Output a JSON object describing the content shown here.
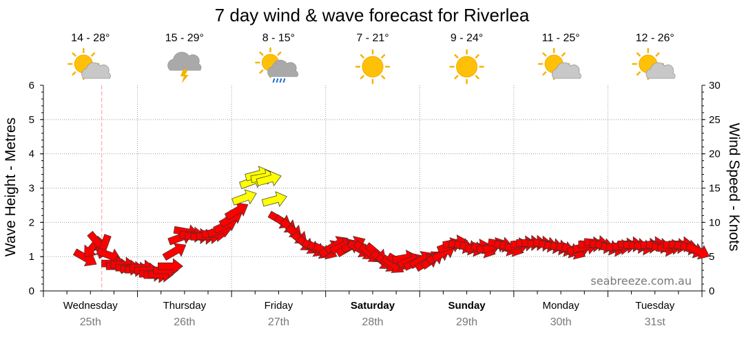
{
  "chart_data": {
    "type": "line",
    "title": "7 day wind & wave forecast for Riverlea",
    "ylabel_left": "Wave Height - Metres",
    "ylabel_right": "Wind Speed - Knots",
    "ylim_left": [
      0,
      6
    ],
    "ylim_right": [
      0,
      30
    ],
    "yticks_left": [
      "0",
      "1",
      "2",
      "3",
      "4",
      "5",
      "6"
    ],
    "yticks_right": [
      "0",
      "5",
      "10",
      "15",
      "20",
      "25",
      "30"
    ],
    "grid": true,
    "watermark": "seabreeze.com.au",
    "days": [
      {
        "name": "Wednesday",
        "date": "25th",
        "bold": false,
        "temp": "14 - 28°",
        "icon": "partly-cloudy-icon"
      },
      {
        "name": "Thursday",
        "date": "26th",
        "bold": false,
        "temp": "15 - 29°",
        "icon": "thunderstorm-icon"
      },
      {
        "name": "Friday",
        "date": "27th",
        "bold": false,
        "temp": "8 - 15°",
        "icon": "showers-icon"
      },
      {
        "name": "Saturday",
        "date": "28th",
        "bold": true,
        "temp": "7 - 21°",
        "icon": "sunny-icon"
      },
      {
        "name": "Sunday",
        "date": "29th",
        "bold": true,
        "temp": "9 - 24°",
        "icon": "sunny-icon"
      },
      {
        "name": "Monday",
        "date": "30th",
        "bold": false,
        "temp": "11 - 25°",
        "icon": "partly-cloudy-icon"
      },
      {
        "name": "Tuesday",
        "date": "31st",
        "bold": false,
        "temp": "12 - 26°",
        "icon": "partly-cloudy-icon"
      }
    ],
    "colors": {
      "wind_strong": "#ffff00",
      "wind_normal": "#ff0000",
      "arrow_stroke": "#333333",
      "current_time_line": "#ff9999"
    },
    "current_time_day": 0.62,
    "wind_series": {
      "name": "Wind Speed",
      "unit": "knots",
      "points": [
        {
          "t": 0.45,
          "v": 4.8,
          "dir": 30
        },
        {
          "t": 0.52,
          "v": 6.3,
          "dir": 130
        },
        {
          "t": 0.58,
          "v": 7.0,
          "dir": 50
        },
        {
          "t": 0.64,
          "v": 6.4,
          "dir": 110
        },
        {
          "t": 0.7,
          "v": 5.2,
          "dir": 20
        },
        {
          "t": 0.75,
          "v": 4.0,
          "dir": 0
        },
        {
          "t": 0.8,
          "v": 3.6,
          "dir": 0
        },
        {
          "t": 0.85,
          "v": 3.8,
          "dir": 0
        },
        {
          "t": 0.9,
          "v": 3.4,
          "dir": 0
        },
        {
          "t": 0.95,
          "v": 3.2,
          "dir": 0
        },
        {
          "t": 1.0,
          "v": 3.1,
          "dir": 0
        },
        {
          "t": 1.05,
          "v": 3.4,
          "dir": 0
        },
        {
          "t": 1.1,
          "v": 3.0,
          "dir": 0
        },
        {
          "t": 1.15,
          "v": 2.5,
          "dir": 0
        },
        {
          "t": 1.2,
          "v": 2.3,
          "dir": 0
        },
        {
          "t": 1.25,
          "v": 2.4,
          "dir": 0
        },
        {
          "t": 1.3,
          "v": 3.0,
          "dir": 0
        },
        {
          "t": 1.35,
          "v": 3.6,
          "dir": 0
        },
        {
          "t": 1.4,
          "v": 5.8,
          "dir": -30
        },
        {
          "t": 1.46,
          "v": 7.8,
          "dir": -20
        },
        {
          "t": 1.52,
          "v": 8.6,
          "dir": 10
        },
        {
          "t": 1.58,
          "v": 8.2,
          "dir": 0
        },
        {
          "t": 1.64,
          "v": 8.0,
          "dir": 0
        },
        {
          "t": 1.7,
          "v": 7.9,
          "dir": 0
        },
        {
          "t": 1.76,
          "v": 8.0,
          "dir": 0
        },
        {
          "t": 1.82,
          "v": 8.3,
          "dir": 0
        },
        {
          "t": 1.88,
          "v": 8.8,
          "dir": -15
        },
        {
          "t": 1.94,
          "v": 9.6,
          "dir": -25
        },
        {
          "t": 2.0,
          "v": 10.6,
          "dir": -30
        },
        {
          "t": 2.06,
          "v": 11.7,
          "dir": -30
        },
        {
          "t": 2.14,
          "v": 13.6,
          "dir": -20
        },
        {
          "t": 2.22,
          "v": 16.0,
          "dir": -20
        },
        {
          "t": 2.28,
          "v": 17.0,
          "dir": -15
        },
        {
          "t": 2.34,
          "v": 16.6,
          "dir": -10
        },
        {
          "t": 2.4,
          "v": 16.3,
          "dir": -15
        },
        {
          "t": 2.46,
          "v": 13.3,
          "dir": -15
        },
        {
          "t": 2.52,
          "v": 10.3,
          "dir": 30
        },
        {
          "t": 2.58,
          "v": 9.7,
          "dir": 35
        },
        {
          "t": 2.64,
          "v": 9.0,
          "dir": 40
        },
        {
          "t": 2.7,
          "v": 8.1,
          "dir": 40
        },
        {
          "t": 2.76,
          "v": 7.1,
          "dir": 40
        },
        {
          "t": 2.82,
          "v": 6.6,
          "dir": 35
        },
        {
          "t": 2.88,
          "v": 6.2,
          "dir": 30
        },
        {
          "t": 2.94,
          "v": 5.9,
          "dir": 30
        },
        {
          "t": 3.0,
          "v": 5.8,
          "dir": 25
        },
        {
          "t": 3.06,
          "v": 6.2,
          "dir": -30
        },
        {
          "t": 3.12,
          "v": 6.8,
          "dir": -30
        },
        {
          "t": 3.18,
          "v": 6.6,
          "dir": -25
        },
        {
          "t": 3.24,
          "v": 6.3,
          "dir": -30
        },
        {
          "t": 3.3,
          "v": 6.8,
          "dir": -25
        },
        {
          "t": 3.36,
          "v": 6.1,
          "dir": 30
        },
        {
          "t": 3.42,
          "v": 5.8,
          "dir": 40
        },
        {
          "t": 3.48,
          "v": 5.4,
          "dir": 40
        },
        {
          "t": 3.54,
          "v": 5.5,
          "dir": 40
        },
        {
          "t": 3.6,
          "v": 4.4,
          "dir": 40
        },
        {
          "t": 3.66,
          "v": 4.0,
          "dir": 35
        },
        {
          "t": 3.72,
          "v": 3.8,
          "dir": 35
        },
        {
          "t": 3.78,
          "v": 4.2,
          "dir": 30
        },
        {
          "t": 3.84,
          "v": 4.8,
          "dir": -10
        },
        {
          "t": 3.9,
          "v": 4.4,
          "dir": -20
        },
        {
          "t": 3.96,
          "v": 4.2,
          "dir": -25
        },
        {
          "t": 4.02,
          "v": 4.6,
          "dir": -30
        },
        {
          "t": 4.08,
          "v": 4.2,
          "dir": -30
        },
        {
          "t": 4.14,
          "v": 4.6,
          "dir": -35
        },
        {
          "t": 4.2,
          "v": 5.2,
          "dir": -30
        },
        {
          "t": 4.26,
          "v": 5.6,
          "dir": -30
        },
        {
          "t": 4.32,
          "v": 6.6,
          "dir": -20
        },
        {
          "t": 4.38,
          "v": 7.0,
          "dir": -10
        },
        {
          "t": 4.44,
          "v": 6.6,
          "dir": 10
        },
        {
          "t": 4.5,
          "v": 6.4,
          "dir": 15
        },
        {
          "t": 4.56,
          "v": 6.2,
          "dir": 15
        },
        {
          "t": 4.62,
          "v": 6.4,
          "dir": -10
        },
        {
          "t": 4.68,
          "v": 6.0,
          "dir": 20
        },
        {
          "t": 4.74,
          "v": 6.4,
          "dir": -15
        },
        {
          "t": 4.8,
          "v": 6.6,
          "dir": -20
        },
        {
          "t": 4.86,
          "v": 6.8,
          "dir": 10
        },
        {
          "t": 4.92,
          "v": 6.3,
          "dir": 20
        },
        {
          "t": 4.98,
          "v": 6.2,
          "dir": 20
        },
        {
          "t": 5.04,
          "v": 6.6,
          "dir": -10
        },
        {
          "t": 5.1,
          "v": 6.9,
          "dir": -5
        },
        {
          "t": 5.16,
          "v": 7.0,
          "dir": 0
        },
        {
          "t": 5.22,
          "v": 7.0,
          "dir": 0
        },
        {
          "t": 5.28,
          "v": 6.9,
          "dir": 0
        },
        {
          "t": 5.34,
          "v": 6.8,
          "dir": 10
        },
        {
          "t": 5.4,
          "v": 6.6,
          "dir": 10
        },
        {
          "t": 5.46,
          "v": 6.4,
          "dir": 10
        },
        {
          "t": 5.52,
          "v": 6.2,
          "dir": 15
        },
        {
          "t": 5.58,
          "v": 6.0,
          "dir": 20
        },
        {
          "t": 5.64,
          "v": 5.8,
          "dir": 25
        },
        {
          "t": 5.7,
          "v": 6.2,
          "dir": -15
        },
        {
          "t": 5.76,
          "v": 6.4,
          "dir": -10
        },
        {
          "t": 5.82,
          "v": 6.8,
          "dir": 0
        },
        {
          "t": 5.88,
          "v": 7.0,
          "dir": 5
        },
        {
          "t": 5.94,
          "v": 6.6,
          "dir": 10
        },
        {
          "t": 6.0,
          "v": 6.4,
          "dir": 15
        },
        {
          "t": 6.06,
          "v": 6.2,
          "dir": 10
        },
        {
          "t": 6.12,
          "v": 6.4,
          "dir": 0
        },
        {
          "t": 6.18,
          "v": 6.6,
          "dir": -5
        },
        {
          "t": 6.24,
          "v": 6.8,
          "dir": 0
        },
        {
          "t": 6.3,
          "v": 6.6,
          "dir": 5
        },
        {
          "t": 6.36,
          "v": 6.4,
          "dir": 10
        },
        {
          "t": 6.42,
          "v": 6.6,
          "dir": 0
        },
        {
          "t": 6.48,
          "v": 6.8,
          "dir": -5
        },
        {
          "t": 6.54,
          "v": 6.6,
          "dir": 5
        },
        {
          "t": 6.6,
          "v": 6.2,
          "dir": 10
        },
        {
          "t": 6.66,
          "v": 6.4,
          "dir": -5
        },
        {
          "t": 6.72,
          "v": 6.6,
          "dir": 5
        },
        {
          "t": 6.78,
          "v": 6.8,
          "dir": 0
        },
        {
          "t": 6.84,
          "v": 6.4,
          "dir": 10
        },
        {
          "t": 6.9,
          "v": 6.0,
          "dir": 20
        },
        {
          "t": 6.96,
          "v": 5.8,
          "dir": 25
        }
      ]
    }
  }
}
